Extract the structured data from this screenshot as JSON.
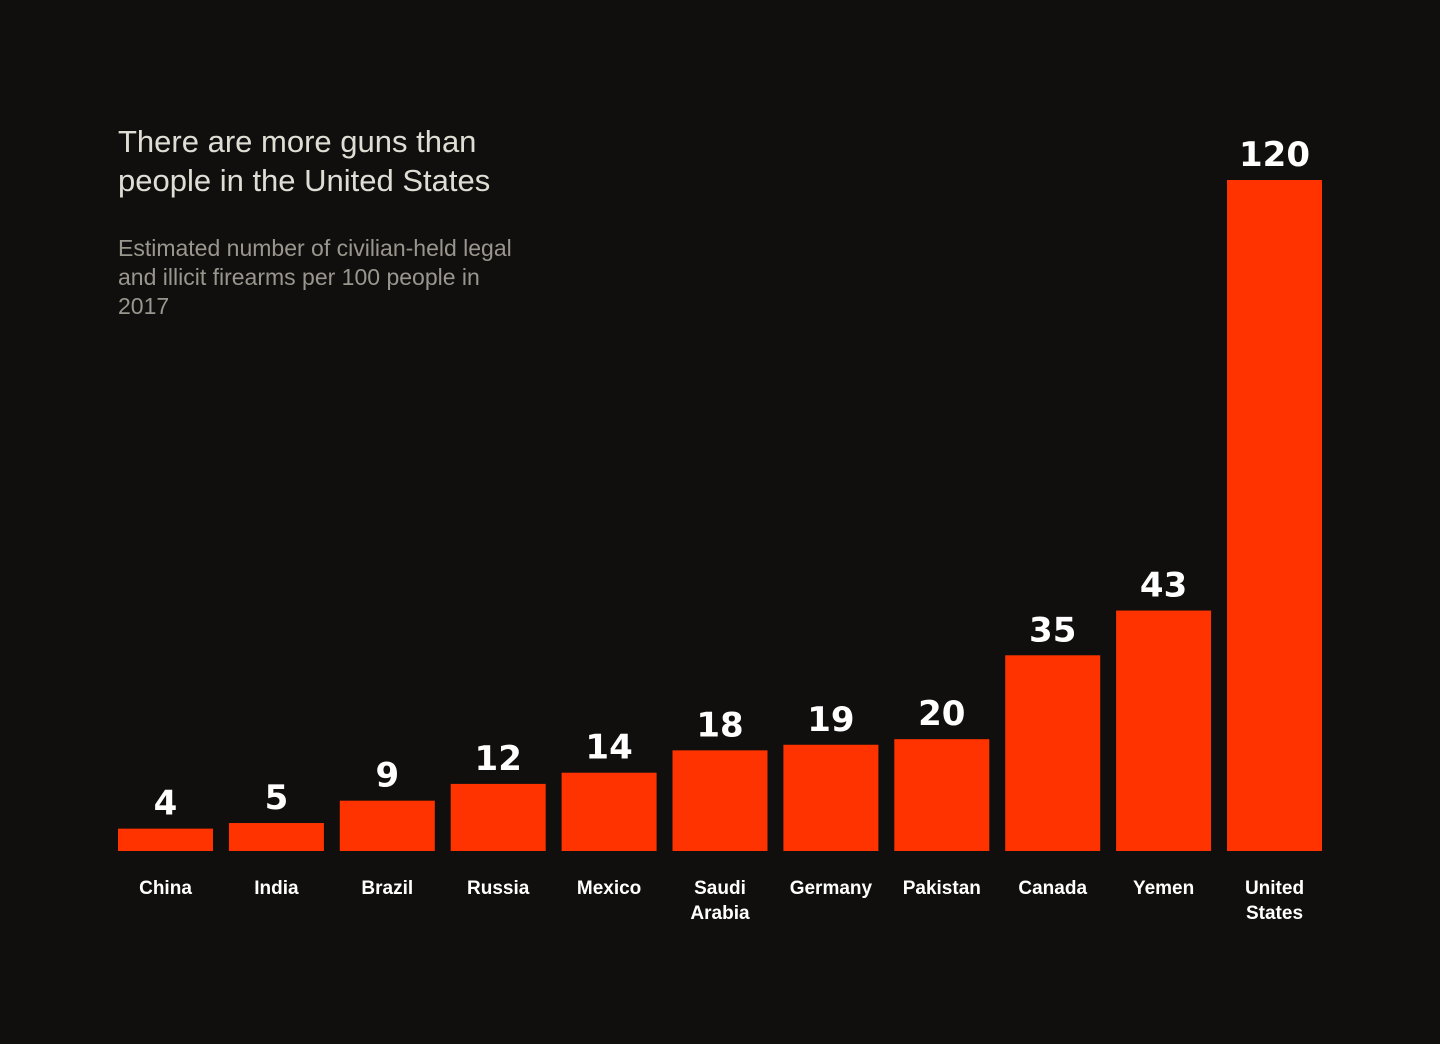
{
  "chart_data": {
    "type": "bar",
    "title": "There are more guns than people in the United States",
    "subtitle": "Estimated number of civilian-held legal and illicit firearms per 100 people in 2017",
    "categories": [
      "China",
      "India",
      "Brazil",
      "Russia",
      "Mexico",
      "Saudi Arabia",
      "Germany",
      "Pakistan",
      "Canada",
      "Yemen",
      "United States"
    ],
    "values": [
      4,
      5,
      9,
      12,
      14,
      18,
      19,
      20,
      35,
      43,
      120
    ],
    "xlabel": "",
    "ylabel": "",
    "ylim": [
      0,
      120
    ],
    "grid": false,
    "colors": {
      "bar": "#ff3300",
      "background": "#100f0e",
      "title": "#e0ddd5",
      "subtitle": "#9a968e",
      "labels": "#ffffff"
    }
  }
}
